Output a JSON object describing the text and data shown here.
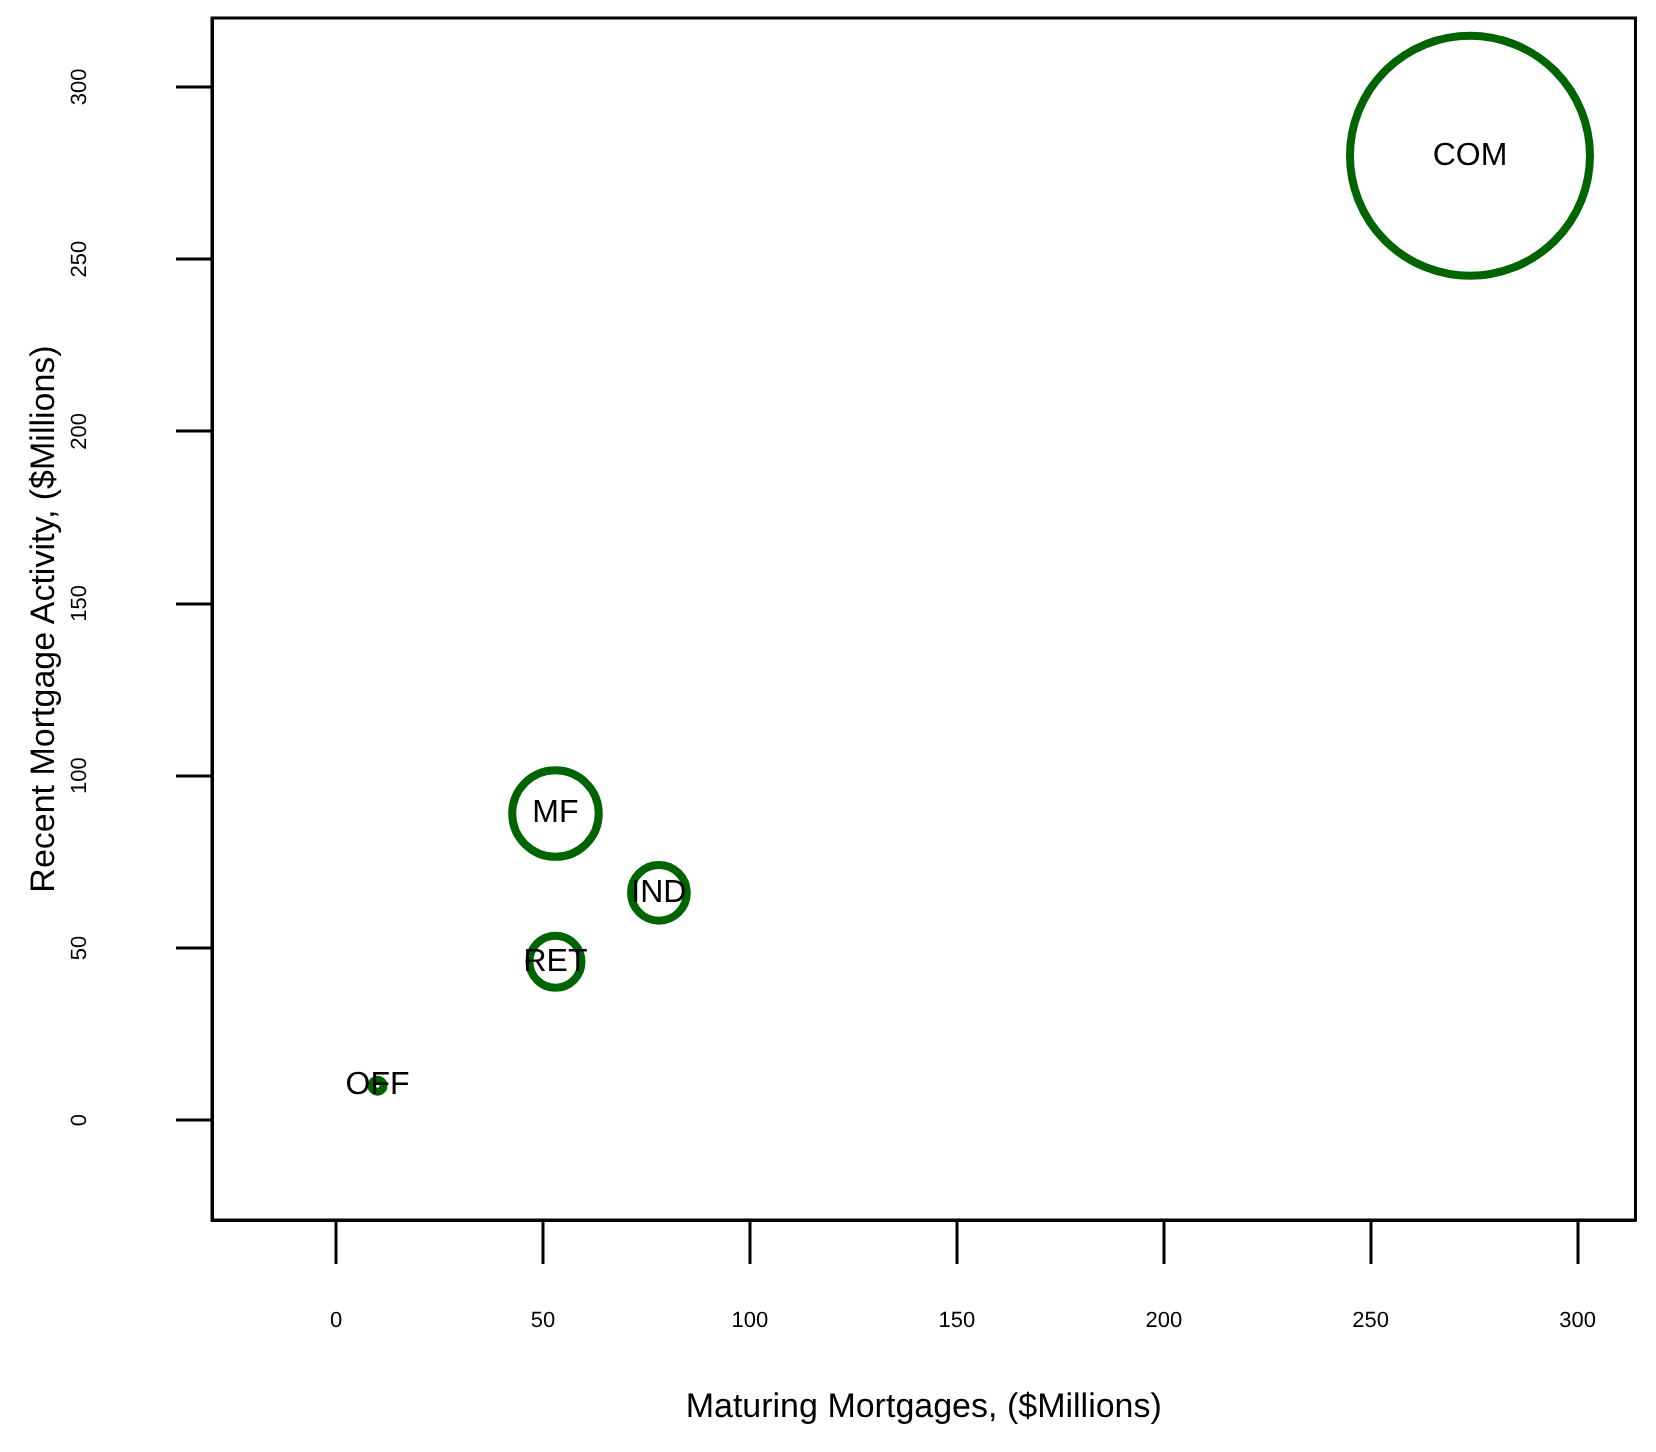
{
  "chart_data": {
    "type": "bubble",
    "xlabel": "Maturing Mortgages, ($Millions)",
    "ylabel": "Recent Mortgage Activity, ($Millions)",
    "series": [
      {
        "color": "#006400",
        "x": [
          274,
          53,
          78,
          53,
          10
        ],
        "values": [
          280,
          89,
          66,
          46,
          10
        ],
        "sizes": [
          1,
          0.13,
          0.054,
          0.047,
          0.0025
        ]
      }
    ],
    "xlim": [
      -30,
      314
    ],
    "ylim": [
      -29,
      320
    ],
    "xticks": [
      0,
      50,
      100,
      150,
      200,
      250,
      300
    ],
    "yticks": [
      0,
      50,
      100,
      150,
      200,
      250,
      300
    ],
    "grid": false,
    "legend": false,
    "annotations": [
      {
        "text": "COM",
        "x": 274,
        "y": 280
      },
      {
        "text": "MF",
        "x": 53,
        "y": 89
      },
      {
        "text": "IND",
        "x": 78,
        "y": 66
      },
      {
        "text": "RET",
        "x": 53,
        "y": 46
      },
      {
        "text": "OFF",
        "x": 10,
        "y": 10
      }
    ]
  }
}
